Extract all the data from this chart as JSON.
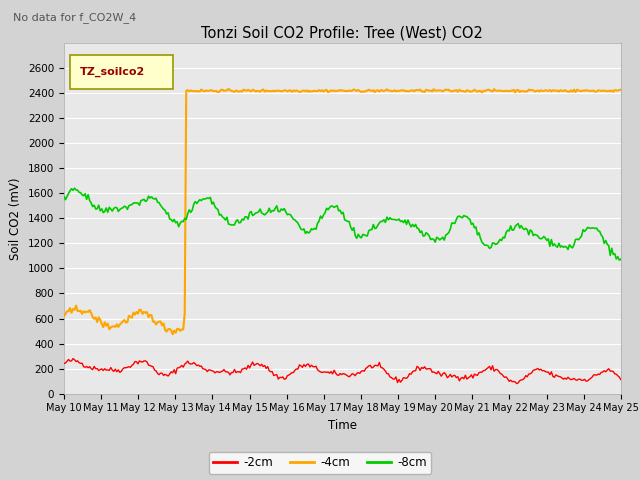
{
  "title": "Tonzi Soil CO2 Profile: Tree (West) CO2",
  "subtitle": "No data for f_CO2W_4",
  "ylabel": "Soil CO2 (mV)",
  "xlabel": "Time",
  "legend_label": "TZ_soilco2",
  "ylim": [
    0,
    2800
  ],
  "yticks": [
    0,
    200,
    400,
    600,
    800,
    1000,
    1200,
    1400,
    1600,
    1800,
    2000,
    2200,
    2400,
    2600
  ],
  "series_labels": [
    "-2cm",
    "-4cm",
    "-8cm"
  ],
  "series_colors": [
    "#ff0000",
    "#ffa500",
    "#00cc00"
  ],
  "fig_facecolor": "#d3d3d3",
  "plot_facecolor": "#e8e8e8",
  "n_points": 370,
  "orange_jump_index": 80
}
